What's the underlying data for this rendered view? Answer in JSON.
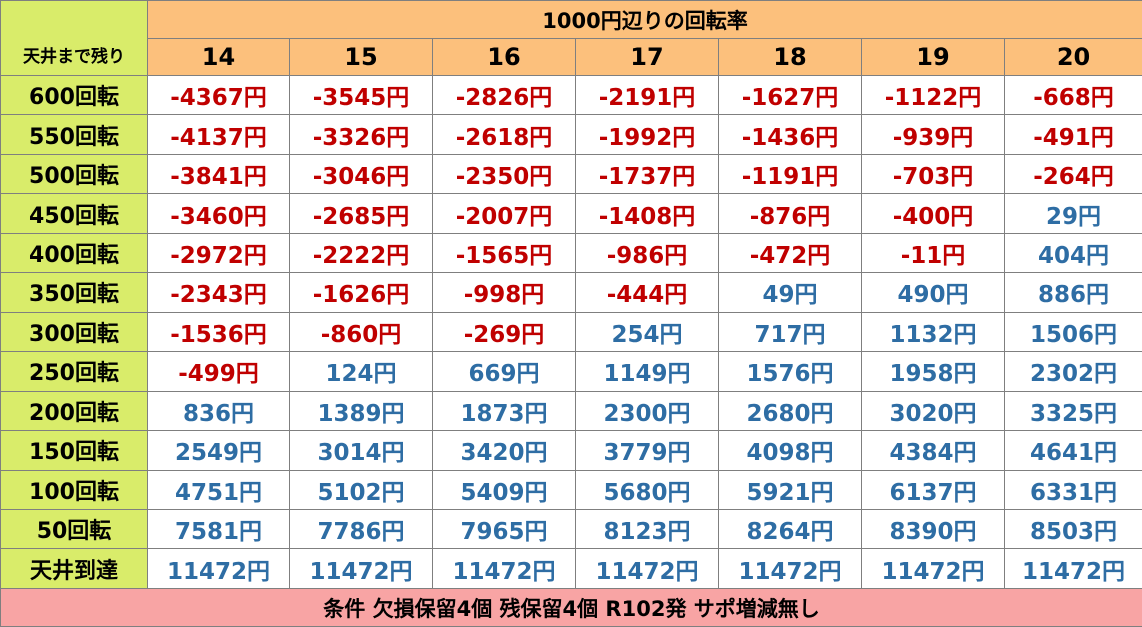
{
  "table": {
    "title": "1000円辺りの回転率",
    "corner_label": "天井まで残り",
    "columns": [
      "14",
      "15",
      "16",
      "17",
      "18",
      "19",
      "20"
    ],
    "rows": [
      {
        "label": "600回転",
        "values": [
          "-4367円",
          "-3545円",
          "-2826円",
          "-2191円",
          "-1627円",
          "-1122円",
          "-668円"
        ]
      },
      {
        "label": "550回転",
        "values": [
          "-4137円",
          "-3326円",
          "-2618円",
          "-1992円",
          "-1436円",
          "-939円",
          "-491円"
        ]
      },
      {
        "label": "500回転",
        "values": [
          "-3841円",
          "-3046円",
          "-2350円",
          "-1737円",
          "-1191円",
          "-703円",
          "-264円"
        ]
      },
      {
        "label": "450回転",
        "values": [
          "-3460円",
          "-2685円",
          "-2007円",
          "-1408円",
          "-876円",
          "-400円",
          "29円"
        ]
      },
      {
        "label": "400回転",
        "values": [
          "-2972円",
          "-2222円",
          "-1565円",
          "-986円",
          "-472円",
          "-11円",
          "404円"
        ]
      },
      {
        "label": "350回転",
        "values": [
          "-2343円",
          "-1626円",
          "-998円",
          "-444円",
          "49円",
          "490円",
          "886円"
        ]
      },
      {
        "label": "300回転",
        "values": [
          "-1536円",
          "-860円",
          "-269円",
          "254円",
          "717円",
          "1132円",
          "1506円"
        ]
      },
      {
        "label": "250回転",
        "values": [
          "-499円",
          "124円",
          "669円",
          "1149円",
          "1576円",
          "1958円",
          "2302円"
        ]
      },
      {
        "label": "200回転",
        "values": [
          "836円",
          "1389円",
          "1873円",
          "2300円",
          "2680円",
          "3020円",
          "3325円"
        ]
      },
      {
        "label": "150回転",
        "values": [
          "2549円",
          "3014円",
          "3420円",
          "3779円",
          "4098円",
          "4384円",
          "4641円"
        ]
      },
      {
        "label": "100回転",
        "values": [
          "4751円",
          "5102円",
          "5409円",
          "5680円",
          "5921円",
          "6137円",
          "6331円"
        ]
      },
      {
        "label": "50回転",
        "values": [
          "7581円",
          "7786円",
          "7965円",
          "8123円",
          "8264円",
          "8390円",
          "8503円"
        ]
      },
      {
        "label": "天井到達",
        "values": [
          "11472円",
          "11472円",
          "11472円",
          "11472円",
          "11472円",
          "11472円",
          "11472円"
        ]
      }
    ],
    "footer": "条件 欠損保留4個 残保留4個 R102発 サポ増減無し"
  },
  "colors": {
    "header_orange": "#fcc07c",
    "row_header_green": "#d9ec6a",
    "footer_pink": "#f8a4a4",
    "negative_red": "#c00000",
    "positive_blue": "#2e6da4"
  }
}
